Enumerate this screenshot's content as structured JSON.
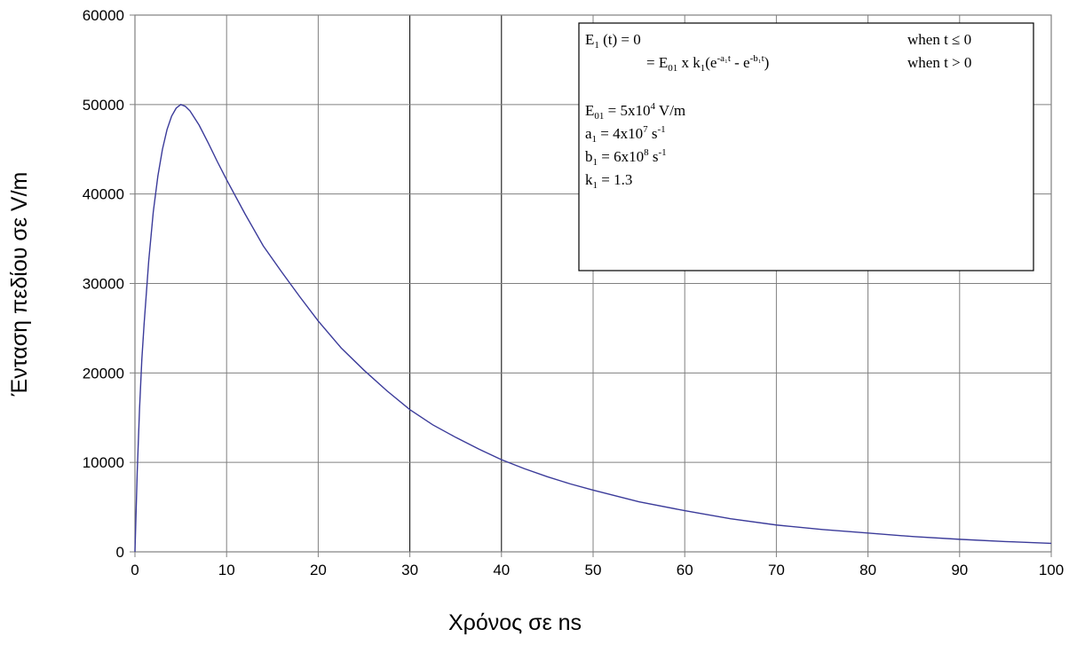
{
  "chart_data": {
    "type": "line",
    "xlabel": "Χρόνος σε ns",
    "ylabel": "Ένταση πεδίου σε V/m",
    "xlim": [
      0,
      100
    ],
    "ylim": [
      0,
      60000
    ],
    "x_ticks": [
      0,
      10,
      20,
      30,
      40,
      50,
      60,
      70,
      80,
      90,
      100
    ],
    "y_ticks": [
      0,
      10000,
      20000,
      30000,
      40000,
      50000,
      60000
    ],
    "x_tick_labels": [
      "0",
      "10",
      "20",
      "30",
      "40",
      "50",
      "60",
      "70",
      "80",
      "90",
      "100"
    ],
    "y_tick_labels": [
      "0",
      "10000",
      "20000",
      "30000",
      "40000",
      "50000",
      "60000"
    ],
    "grid": true,
    "line_color": "#3b3b9a",
    "series": [
      {
        "x": [
          0,
          0.25,
          0.5,
          0.75,
          1,
          1.5,
          2,
          2.5,
          3,
          3.5,
          4,
          4.5,
          5,
          5.5,
          6,
          7,
          8,
          9,
          10,
          12,
          14,
          16,
          18,
          20,
          22.5,
          25,
          27.5,
          30,
          32.5,
          35,
          37.5,
          40,
          42.5,
          45,
          47.5,
          50,
          55,
          60,
          65,
          70,
          75,
          80,
          85,
          90,
          95,
          100
        ],
        "y": [
          0,
          9000,
          16000,
          21500,
          25500,
          32500,
          38000,
          42000,
          45000,
          47200,
          48700,
          49600,
          50000,
          49800,
          49300,
          47700,
          45700,
          43600,
          41600,
          37800,
          34200,
          31300,
          28500,
          25800,
          22800,
          20300,
          18000,
          15900,
          14200,
          12800,
          11500,
          10300,
          9300,
          8400,
          7600,
          6900,
          5600,
          4600,
          3700,
          3000,
          2500,
          2100,
          1700,
          1400,
          1150,
          950
        ]
      }
    ],
    "legend": {
      "placement": "top-right",
      "line1_main": "E",
      "line1_sub": "1",
      "line1_rest": " (t) = 0",
      "line1_cond": "when t ≤ 0",
      "line2_eq": "= E",
      "line2_sub": "01",
      "line2_mid": " x k",
      "line2_sub2": "1",
      "line2_paren": "(e",
      "line2_exp1": "-a₁t",
      "line2_minus": " - e",
      "line2_exp2": "-b₁t",
      "line2_close": ")",
      "line2_cond": "when t > 0",
      "p1_main": "E",
      "p1_sub": "01",
      "p1_val": " = 5x10",
      "p1_exp": "4",
      "p1_unit": " V/m",
      "p2_main": "a",
      "p2_sub": "1",
      "p2_val": " = 4x10",
      "p2_exp": "7",
      "p2_unit": " s",
      "p2_uexp": "-1",
      "p3_main": "b",
      "p3_sub": "1",
      "p3_val": " = 6x10",
      "p3_exp": "8",
      "p3_unit": " s",
      "p3_uexp": "-1",
      "p4_main": "k",
      "p4_sub": "1",
      "p4_val": " = 1.3"
    }
  }
}
